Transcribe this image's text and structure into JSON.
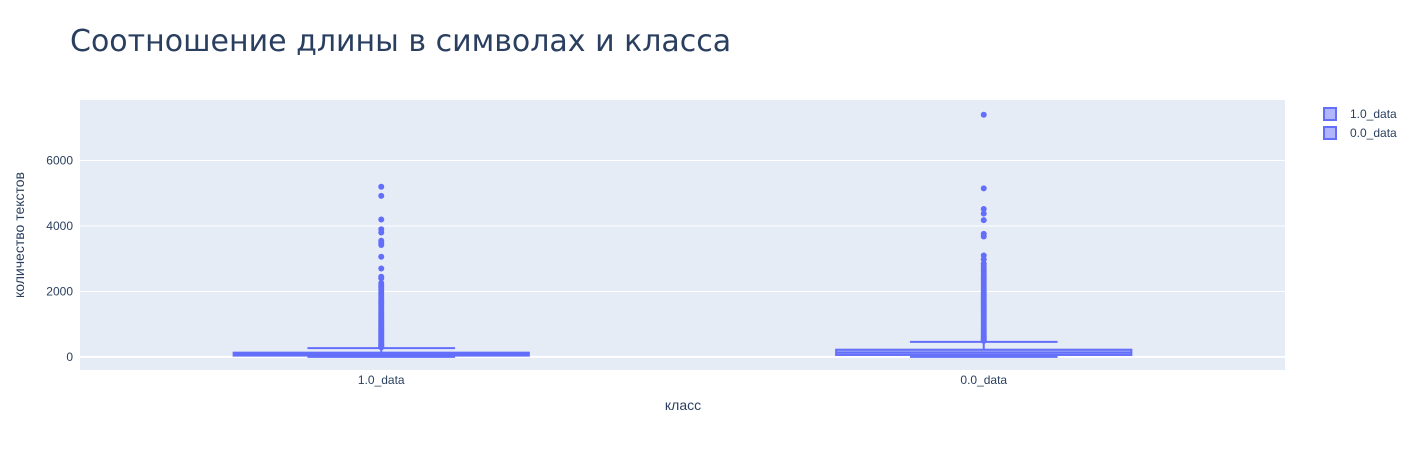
{
  "chart_data": {
    "type": "box",
    "title": "Соотношение длины в символах и класса",
    "xlabel": "класс",
    "ylabel": "количество текстов",
    "categories": [
      "1.0_data",
      "0.0_data"
    ],
    "yticks": [
      0,
      2000,
      4000,
      6000
    ],
    "ylim": [
      -400,
      7850
    ],
    "grid": true,
    "legend_position": "top-right",
    "colors": {
      "series": "#636efa",
      "plot_bg": "#e5ecf6",
      "text": "#2a3f5f"
    },
    "series": [
      {
        "name": "1.0_data",
        "category": "1.0_data",
        "q1": 40,
        "median": 80,
        "q3": 130,
        "upperfence": 270,
        "lowerfence": 0,
        "outliers": [
          5200,
          4920,
          4200,
          3900,
          3800,
          3550,
          3480,
          3420,
          3060,
          2700,
          2450,
          2400,
          2250,
          2180,
          2120,
          2050,
          1980,
          1900,
          1820,
          1760,
          1700,
          1650,
          1600,
          1540,
          1480,
          1420,
          1360,
          1300,
          1250,
          1200,
          1150,
          1100,
          1050,
          1000,
          960,
          920,
          880,
          840,
          800,
          760,
          720,
          680,
          640,
          600,
          560,
          520,
          480,
          440,
          400,
          370,
          340,
          310,
          290
        ]
      },
      {
        "name": "0.0_data",
        "category": "0.0_data",
        "q1": 60,
        "median": 130,
        "q3": 220,
        "upperfence": 460,
        "lowerfence": 0,
        "outliers": [
          7400,
          5150,
          4520,
          4380,
          4180,
          3760,
          3680,
          3100,
          2980,
          2850,
          2760,
          2680,
          2600,
          2520,
          2450,
          2380,
          2300,
          2230,
          2150,
          2080,
          2000,
          1940,
          1880,
          1820,
          1760,
          1700,
          1640,
          1580,
          1520,
          1460,
          1400,
          1340,
          1280,
          1220,
          1160,
          1100,
          1040,
          980,
          920,
          860,
          800,
          740,
          690,
          640,
          600,
          560,
          520,
          490
        ]
      }
    ]
  }
}
